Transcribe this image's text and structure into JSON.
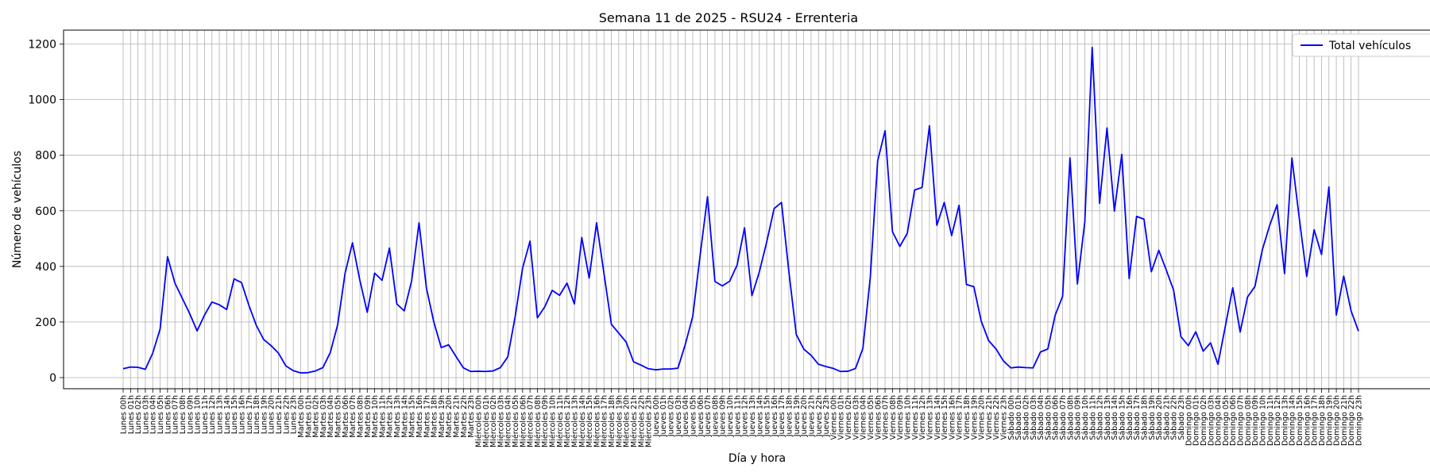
{
  "chart_data": {
    "type": "line",
    "title": "Semana 11 de 2025 - RSU24 - Errenteria",
    "xlabel": "Día y hora",
    "ylabel": "Número de vehículos",
    "ylim": [
      -40,
      1250
    ],
    "yticks": [
      0,
      200,
      400,
      600,
      800,
      1000,
      1200
    ],
    "grid": true,
    "legend_position": "top-right",
    "days": [
      "Lunes",
      "Martes",
      "Miércoles",
      "Jueves",
      "Viernes",
      "Sábado",
      "Domingo"
    ],
    "series": [
      {
        "name": "Total vehículos",
        "color": "#0000ff",
        "values": [
          32,
          38,
          37,
          30,
          88,
          175,
          435,
          340,
          285,
          230,
          168,
          225,
          272,
          262,
          245,
          355,
          342,
          260,
          188,
          137,
          115,
          88,
          42,
          25,
          17,
          18,
          24,
          36,
          90,
          190,
          375,
          485,
          350,
          235,
          376,
          350,
          466,
          265,
          240,
          348,
          557,
          322,
          200,
          108,
          118,
          76,
          35,
          22,
          23,
          22,
          24,
          36,
          75,
          220,
          394,
          491,
          215,
          255,
          314,
          296,
          340,
          265,
          504,
          358,
          557,
          375,
          192,
          160,
          128,
          57,
          45,
          32,
          28,
          31,
          31,
          34,
          120,
          220,
          440,
          651,
          346,
          330,
          347,
          405,
          539,
          295,
          380,
          488,
          608,
          630,
          380,
          155,
          103,
          80,
          48,
          40,
          33,
          22,
          23,
          33,
          105,
          360,
          780,
          888,
          525,
          472,
          519,
          675,
          684,
          906,
          548,
          630,
          511,
          620,
          335,
          327,
          203,
          133,
          103,
          60,
          35,
          38,
          36,
          35,
          92,
          103,
          225,
          292,
          790,
          337,
          560,
          1188,
          627,
          898,
          599,
          803,
          356,
          580,
          570,
          381,
          458,
          388,
          315,
          147,
          115,
          165,
          95,
          125,
          48,
          185,
          323,
          164,
          290,
          328,
          460,
          548,
          622,
          374,
          790,
          572,
          364,
          532,
          443,
          686,
          225,
          365,
          240,
          167
        ]
      }
    ]
  }
}
